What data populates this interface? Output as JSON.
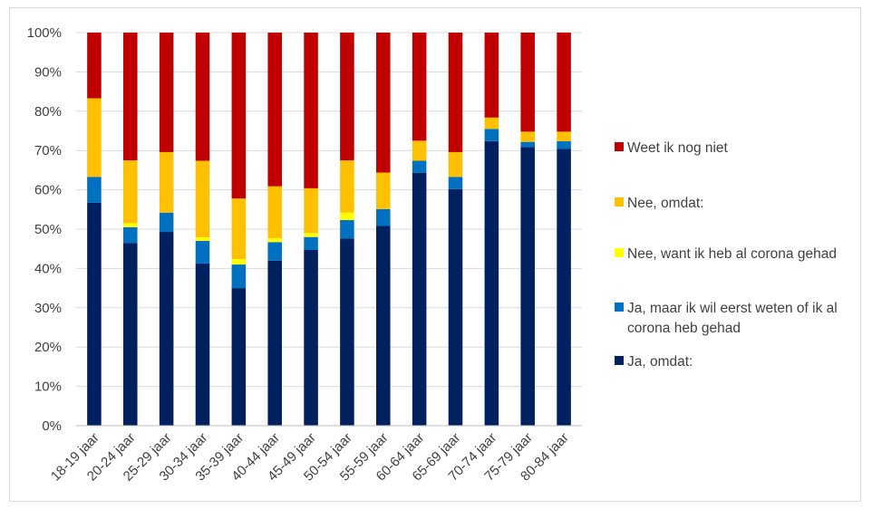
{
  "chart_data": {
    "type": "bar",
    "stacked": true,
    "percent_stacked": true,
    "title": "",
    "xlabel": "",
    "ylabel": "",
    "ylim": [
      0,
      100
    ],
    "yticks": [
      "0%",
      "10%",
      "20%",
      "30%",
      "40%",
      "50%",
      "60%",
      "70%",
      "80%",
      "90%",
      "100%"
    ],
    "grid": true,
    "legend_position": "right",
    "categories": [
      "18-19 jaar",
      "20-24 jaar",
      "25-29 jaar",
      "30-34 jaar",
      "35-39 jaar",
      "40-44 jaar",
      "45-49 jaar",
      "50-54 jaar",
      "55-59 jaar",
      "60-64 jaar",
      "65-69 jaar",
      "70-74 jaar",
      "75-79 jaar",
      "80-84 jaar"
    ],
    "series": [
      {
        "name": "Ja, omdat:",
        "color": "#002060",
        "values": [
          56.7,
          46.5,
          49.3,
          41.3,
          35.0,
          42.0,
          44.7,
          47.6,
          50.8,
          64.3,
          60.2,
          72.4,
          70.9,
          70.4
        ]
      },
      {
        "name": "Ja, maar ik wil eerst weten of ik al corona heb gehad",
        "color": "#0070C0",
        "values": [
          6.6,
          4.0,
          4.9,
          5.7,
          6.0,
          4.7,
          3.3,
          4.7,
          4.3,
          3.1,
          3.1,
          3.1,
          1.3,
          2.0
        ]
      },
      {
        "name": "Nee, want ik heb al corona gehad",
        "color": "#FFFF00",
        "values": [
          0.0,
          1.0,
          0.0,
          0.9,
          1.4,
          1.0,
          1.0,
          1.9,
          0.0,
          0.0,
          0.0,
          0.0,
          0.0,
          0.0
        ]
      },
      {
        "name": "Nee, omdat:",
        "color": "#FFC000",
        "values": [
          20.0,
          16.0,
          15.4,
          19.5,
          15.4,
          13.2,
          11.4,
          13.3,
          9.3,
          5.1,
          6.3,
          2.9,
          2.6,
          2.4
        ]
      },
      {
        "name": "Weet ik nog niet",
        "color": "#C00000",
        "values": [
          16.7,
          32.5,
          30.4,
          32.6,
          42.2,
          39.1,
          39.6,
          32.5,
          35.6,
          27.5,
          30.4,
          21.6,
          25.2,
          25.2
        ]
      }
    ],
    "legend_order": [
      {
        "label_lines": [
          "Weet ik nog niet"
        ],
        "color": "#C00000"
      },
      {
        "label_lines": [
          "Nee, omdat:"
        ],
        "color": "#FFC000"
      },
      {
        "label_lines": [
          "Nee, want ik heb al corona gehad"
        ],
        "color": "#FFFF00"
      },
      {
        "label_lines": [
          "Ja, maar ik wil eerst weten of ik al",
          "corona heb gehad"
        ],
        "color": "#0070C0"
      },
      {
        "label_lines": [
          "Ja, omdat:"
        ],
        "color": "#002060"
      }
    ]
  }
}
